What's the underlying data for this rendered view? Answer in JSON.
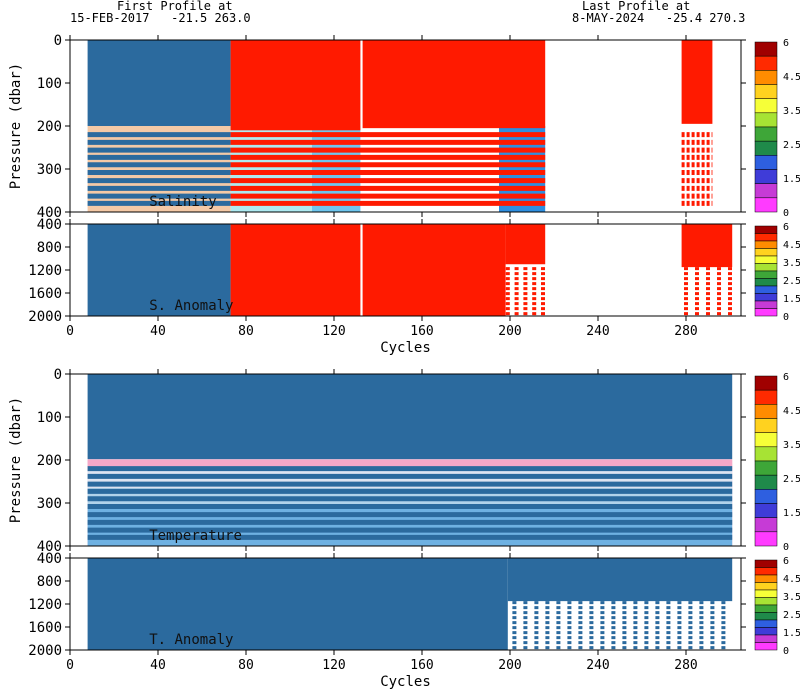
{
  "header": {
    "first_title": "First Profile at",
    "first_value": "15-FEB-2017   -21.5 263.0",
    "last_title": "Last Profile at",
    "last_value": "8-MAY-2024   -25.4 270.3"
  },
  "colors": {
    "profile_blue": "#2b6a9e",
    "qc_red": "#ff1a00",
    "white": "#ffffff"
  },
  "chart_data": [
    {
      "type": "heatmap",
      "title": "Salinity",
      "ylabel": "Pressure (dbar)",
      "xlim": [
        0,
        305
      ],
      "ylim": [
        400,
        0
      ],
      "yticks": [
        0,
        100,
        200,
        300,
        400
      ],
      "colorbar_ticks": [
        "6",
        "4.5",
        "3.5",
        "2.5",
        "1.5",
        "0"
      ],
      "blocks": [
        {
          "x0": 8,
          "x1": 73,
          "p0": 0,
          "p1": 200,
          "color": "#2b6a9e"
        },
        {
          "x0": 73,
          "x1": 132,
          "p0": 0,
          "p1": 210,
          "color": "#ff1a00"
        },
        {
          "x0": 133,
          "x1": 216,
          "p0": 0,
          "p1": 205,
          "color": "#ff1a00"
        },
        {
          "x0": 278,
          "x1": 292,
          "p0": 0,
          "p1": 195,
          "color": "#ff1a00"
        }
      ],
      "cycle_bands": [
        {
          "x0": 8,
          "x1": 73,
          "color": "#f4c9a6"
        },
        {
          "x0": 73,
          "x1": 110,
          "color": "#aeeaf1"
        },
        {
          "x0": 110,
          "x1": 132,
          "color": "#6ec6ee"
        },
        {
          "x0": 133,
          "x1": 160,
          "color": "#ffffff"
        },
        {
          "x0": 160,
          "x1": 195,
          "color": "#ffffff"
        },
        {
          "x0": 195,
          "x1": 216,
          "color": "#2e8fe0"
        }
      ],
      "line_levels": [
        220,
        238,
        256,
        273,
        290,
        308,
        327,
        345,
        363,
        380
      ],
      "line_color_left": "#2b6a9e",
      "line_color_right": "#ff1a00",
      "line_split_x": 73,
      "line_end_x": 216,
      "late_line_segment": [
        278,
        292
      ]
    },
    {
      "type": "heatmap",
      "title": "S. Anomaly",
      "ylabel": "",
      "xlim": [
        0,
        305
      ],
      "ylim": [
        2000,
        400
      ],
      "yticks": [
        400,
        800,
        1200,
        1600,
        2000
      ],
      "xticks": [
        0,
        40,
        80,
        120,
        160,
        200,
        240,
        280
      ],
      "xlabel": "Cycles",
      "colorbar_ticks": [
        "6",
        "4.5",
        "3.5",
        "2.5",
        "1.5",
        "0"
      ],
      "blocks": [
        {
          "x0": 8,
          "x1": 73,
          "p0": 400,
          "p1": 2000,
          "color": "#2b6a9e"
        },
        {
          "x0": 73,
          "x1": 132,
          "p0": 400,
          "p1": 2000,
          "color": "#ff1a00"
        },
        {
          "x0": 133,
          "x1": 198,
          "p0": 400,
          "p1": 2000,
          "color": "#ff1a00"
        },
        {
          "x0": 198,
          "x1": 216,
          "p0": 400,
          "p1": 1100,
          "color": "#ff1a00"
        },
        {
          "x0": 278,
          "x1": 301,
          "p0": 400,
          "p1": 1150,
          "color": "#ff1a00"
        }
      ],
      "short_profiles": [
        {
          "x": 199,
          "p": 2000
        },
        {
          "x": 203,
          "p": 2000
        },
        {
          "x": 207,
          "p": 2000
        },
        {
          "x": 211,
          "p": 2000
        },
        {
          "x": 215,
          "p": 2000
        },
        {
          "x": 280,
          "p": 2000
        },
        {
          "x": 285,
          "p": 2000
        },
        {
          "x": 290,
          "p": 2000
        },
        {
          "x": 295,
          "p": 2000
        },
        {
          "x": 300,
          "p": 2000
        }
      ]
    },
    {
      "type": "heatmap",
      "title": "Temperature",
      "ylabel": "Pressure (dbar)",
      "xlim": [
        0,
        305
      ],
      "ylim": [
        400,
        0
      ],
      "yticks": [
        0,
        100,
        200,
        300,
        400
      ],
      "colorbar_ticks": [
        "6",
        "4.5",
        "3.5",
        "2.5",
        "1.5",
        "0"
      ],
      "blocks": [
        {
          "x0": 8,
          "x1": 301,
          "p0": 0,
          "p1": 198,
          "color": "#2b6a9e"
        }
      ],
      "cycle_bands": [
        {
          "x0": 8,
          "x1": 301,
          "color": "#f4a8c8"
        }
      ],
      "depth_bands": [
        {
          "p0": 198,
          "p1": 225,
          "color": "#f4a8c8"
        },
        {
          "p0": 225,
          "p1": 265,
          "color": "#d8eef8"
        },
        {
          "p0": 265,
          "p1": 310,
          "color": "#a6dbf0"
        },
        {
          "p0": 310,
          "p1": 400,
          "color": "#56b3e6"
        }
      ],
      "line_levels": [
        220,
        238,
        256,
        273,
        290,
        308,
        327,
        345,
        363,
        380
      ],
      "line_color_left": "#2b6a9e",
      "line_color_right": "#2b6a9e",
      "line_split_x": 301,
      "line_end_x": 301
    },
    {
      "type": "heatmap",
      "title": "T. Anomaly",
      "ylabel": "",
      "xlim": [
        0,
        305
      ],
      "ylim": [
        2000,
        400
      ],
      "yticks": [
        400,
        800,
        1200,
        1600,
        2000
      ],
      "xticks": [
        0,
        40,
        80,
        120,
        160,
        200,
        240,
        280
      ],
      "xlabel": "Cycles",
      "colorbar_ticks": [
        "6",
        "4.5",
        "3.5",
        "2.5",
        "1.5",
        "0"
      ],
      "blocks": [
        {
          "x0": 8,
          "x1": 199,
          "p0": 400,
          "p1": 2000,
          "color": "#2b6a9e"
        },
        {
          "x0": 199,
          "x1": 301,
          "p0": 400,
          "p1": 1150,
          "color": "#2b6a9e"
        }
      ],
      "short_profiles": [
        {
          "x": 202,
          "p": 2000
        },
        {
          "x": 207,
          "p": 2000
        },
        {
          "x": 212,
          "p": 2000
        },
        {
          "x": 217,
          "p": 2000
        },
        {
          "x": 222,
          "p": 2000
        },
        {
          "x": 227,
          "p": 2000
        },
        {
          "x": 232,
          "p": 2000
        },
        {
          "x": 237,
          "p": 2000
        },
        {
          "x": 242,
          "p": 2000
        },
        {
          "x": 247,
          "p": 2000
        },
        {
          "x": 252,
          "p": 2000
        },
        {
          "x": 257,
          "p": 2000
        },
        {
          "x": 262,
          "p": 2000
        },
        {
          "x": 267,
          "p": 2000
        },
        {
          "x": 272,
          "p": 2000
        },
        {
          "x": 277,
          "p": 2000
        },
        {
          "x": 282,
          "p": 2000
        },
        {
          "x": 287,
          "p": 2000
        },
        {
          "x": 292,
          "p": 2000
        },
        {
          "x": 297,
          "p": 2000
        }
      ]
    }
  ]
}
